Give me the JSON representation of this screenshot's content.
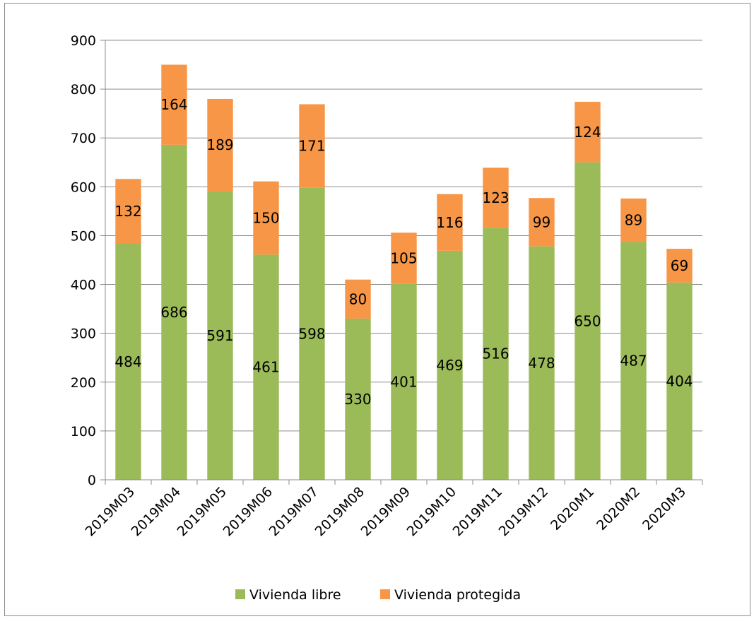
{
  "chart_data": {
    "type": "bar",
    "stacked": true,
    "categories": [
      "2019M03",
      "2019M04",
      "2019M05",
      "2019M06",
      "2019M07",
      "2019M08",
      "2019M09",
      "2019M10",
      "2019M11",
      "2019M12",
      "2020M1",
      "2020M2",
      "2020M3"
    ],
    "series": [
      {
        "name": "Vivienda libre",
        "color": "#9bbb59",
        "values": [
          484,
          686,
          591,
          461,
          598,
          330,
          401,
          469,
          516,
          478,
          650,
          487,
          404
        ]
      },
      {
        "name": "Vivienda protegida",
        "color": "#f79646",
        "values": [
          132,
          164,
          189,
          150,
          171,
          80,
          105,
          116,
          123,
          99,
          124,
          89,
          69
        ]
      }
    ],
    "ylim": [
      0,
      900
    ],
    "yticks": [
      "0",
      "100",
      "200",
      "300",
      "400",
      "500",
      "600",
      "700",
      "800",
      "900"
    ],
    "grid": true,
    "legend_position": "bottom"
  }
}
